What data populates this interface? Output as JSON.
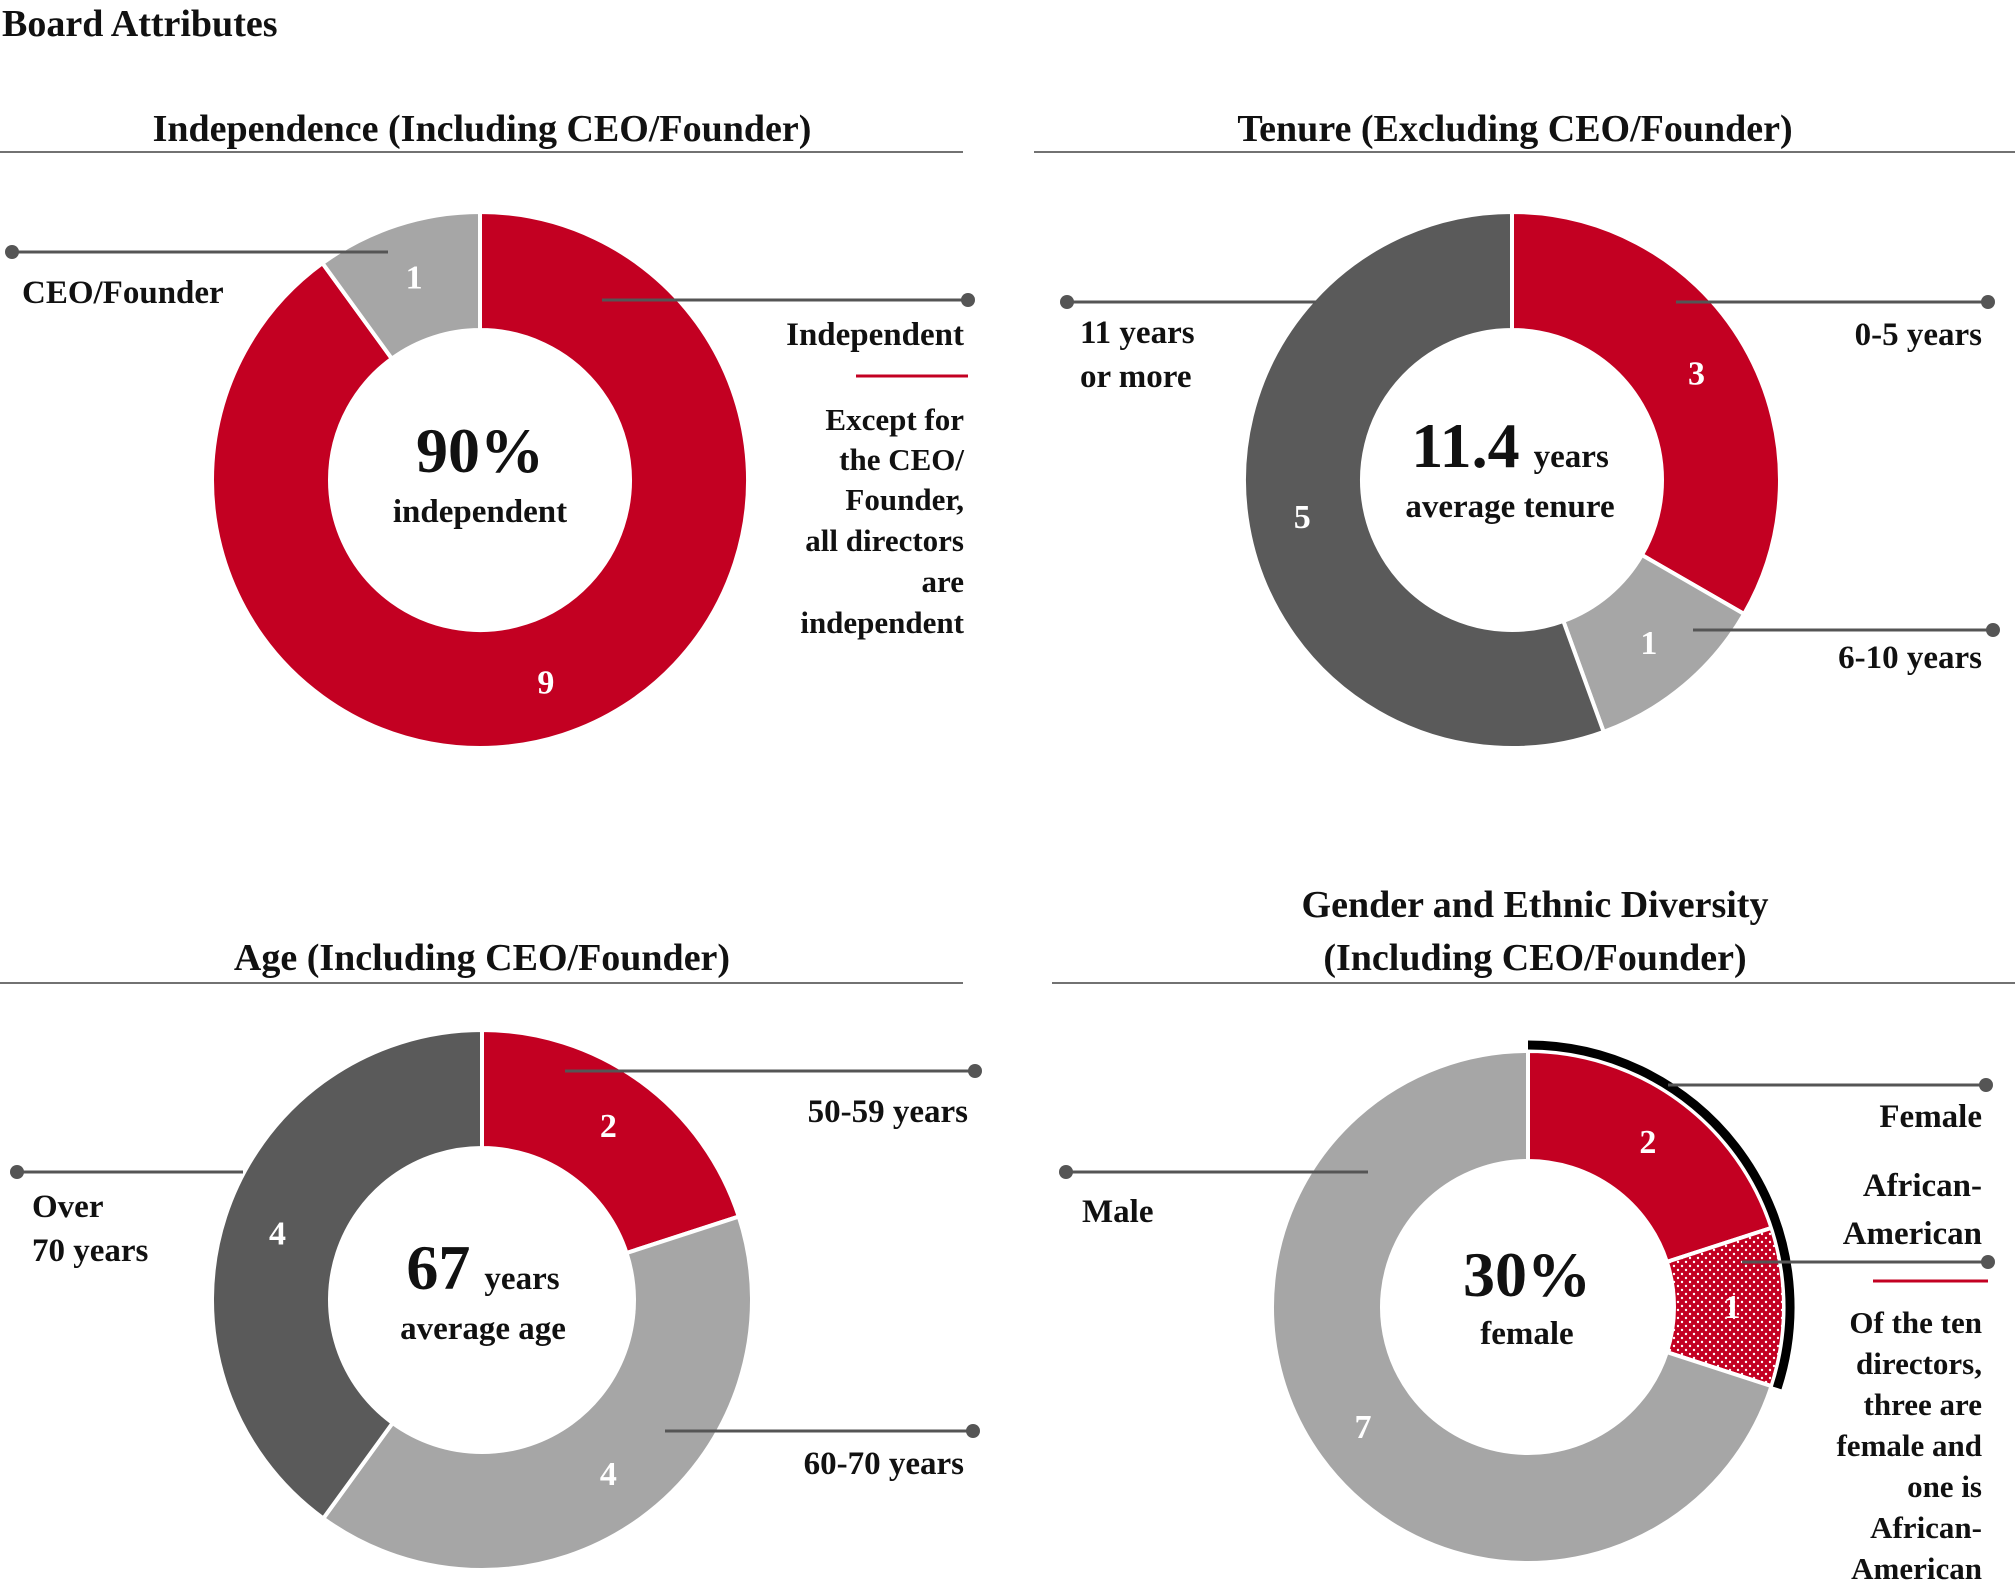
{
  "page_title": "Board Attributes",
  "colors": {
    "red": "#C30022",
    "dark": "#5A5A5A",
    "light": "#A6A6A6",
    "white": "#FFFFFF",
    "text": "#111111",
    "black": "#000000"
  },
  "chart_data": [
    {
      "type": "pie",
      "id": "independence",
      "title": "Independence (Including CEO/Founder)",
      "categories": [
        "Independent",
        "CEO/Founder"
      ],
      "values": [
        9,
        1
      ],
      "value_labels": [
        "9",
        "1"
      ],
      "slice_colors": [
        "red",
        "light"
      ],
      "center": {
        "big": "90%",
        "small": "",
        "line2": "independent"
      },
      "note": [
        "Except for",
        "the CEO/",
        "Founder,",
        "all directors",
        "are",
        "independent"
      ]
    },
    {
      "type": "pie",
      "id": "tenure",
      "title": "Tenure (Excluding CEO/Founder)",
      "categories": [
        "0-5 years",
        "6-10 years",
        "11 years or more"
      ],
      "legend_lines": {
        "11 years or more": [
          "11 years",
          "or more"
        ]
      },
      "values": [
        3,
        1,
        5
      ],
      "value_labels": [
        "3",
        "1",
        "5"
      ],
      "slice_colors": [
        "red",
        "light",
        "dark"
      ],
      "center": {
        "big": "11.4",
        "small": "years",
        "line2": "average tenure"
      }
    },
    {
      "type": "pie",
      "id": "age",
      "title": "Age (Including CEO/Founder)",
      "categories": [
        "50-59 years",
        "60-70 years",
        "Over 70 years"
      ],
      "legend_lines": {
        "Over 70 years": [
          "Over",
          "70 years"
        ]
      },
      "values": [
        2,
        4,
        4
      ],
      "value_labels": [
        "2",
        "4",
        "4"
      ],
      "slice_colors": [
        "red",
        "light",
        "dark"
      ],
      "center": {
        "big": "67",
        "small": "years",
        "line2": "average age"
      }
    },
    {
      "type": "pie",
      "id": "diversity",
      "title": [
        "Gender and Ethnic Diversity",
        "(Including CEO/Founder)"
      ],
      "categories": [
        "Female",
        "African-American",
        "Male"
      ],
      "legend_lines": {
        "African-American": [
          "African-",
          "American"
        ]
      },
      "values": [
        2,
        1,
        7
      ],
      "value_labels": [
        "2",
        "1",
        "7"
      ],
      "slice_colors": [
        "red",
        "red-dotted",
        "light"
      ],
      "center": {
        "big": "30%",
        "small": "",
        "line2": "female"
      },
      "note": [
        "Of the ten",
        "directors,",
        "three are",
        "female and",
        "one is",
        "African-",
        "American"
      ]
    }
  ]
}
